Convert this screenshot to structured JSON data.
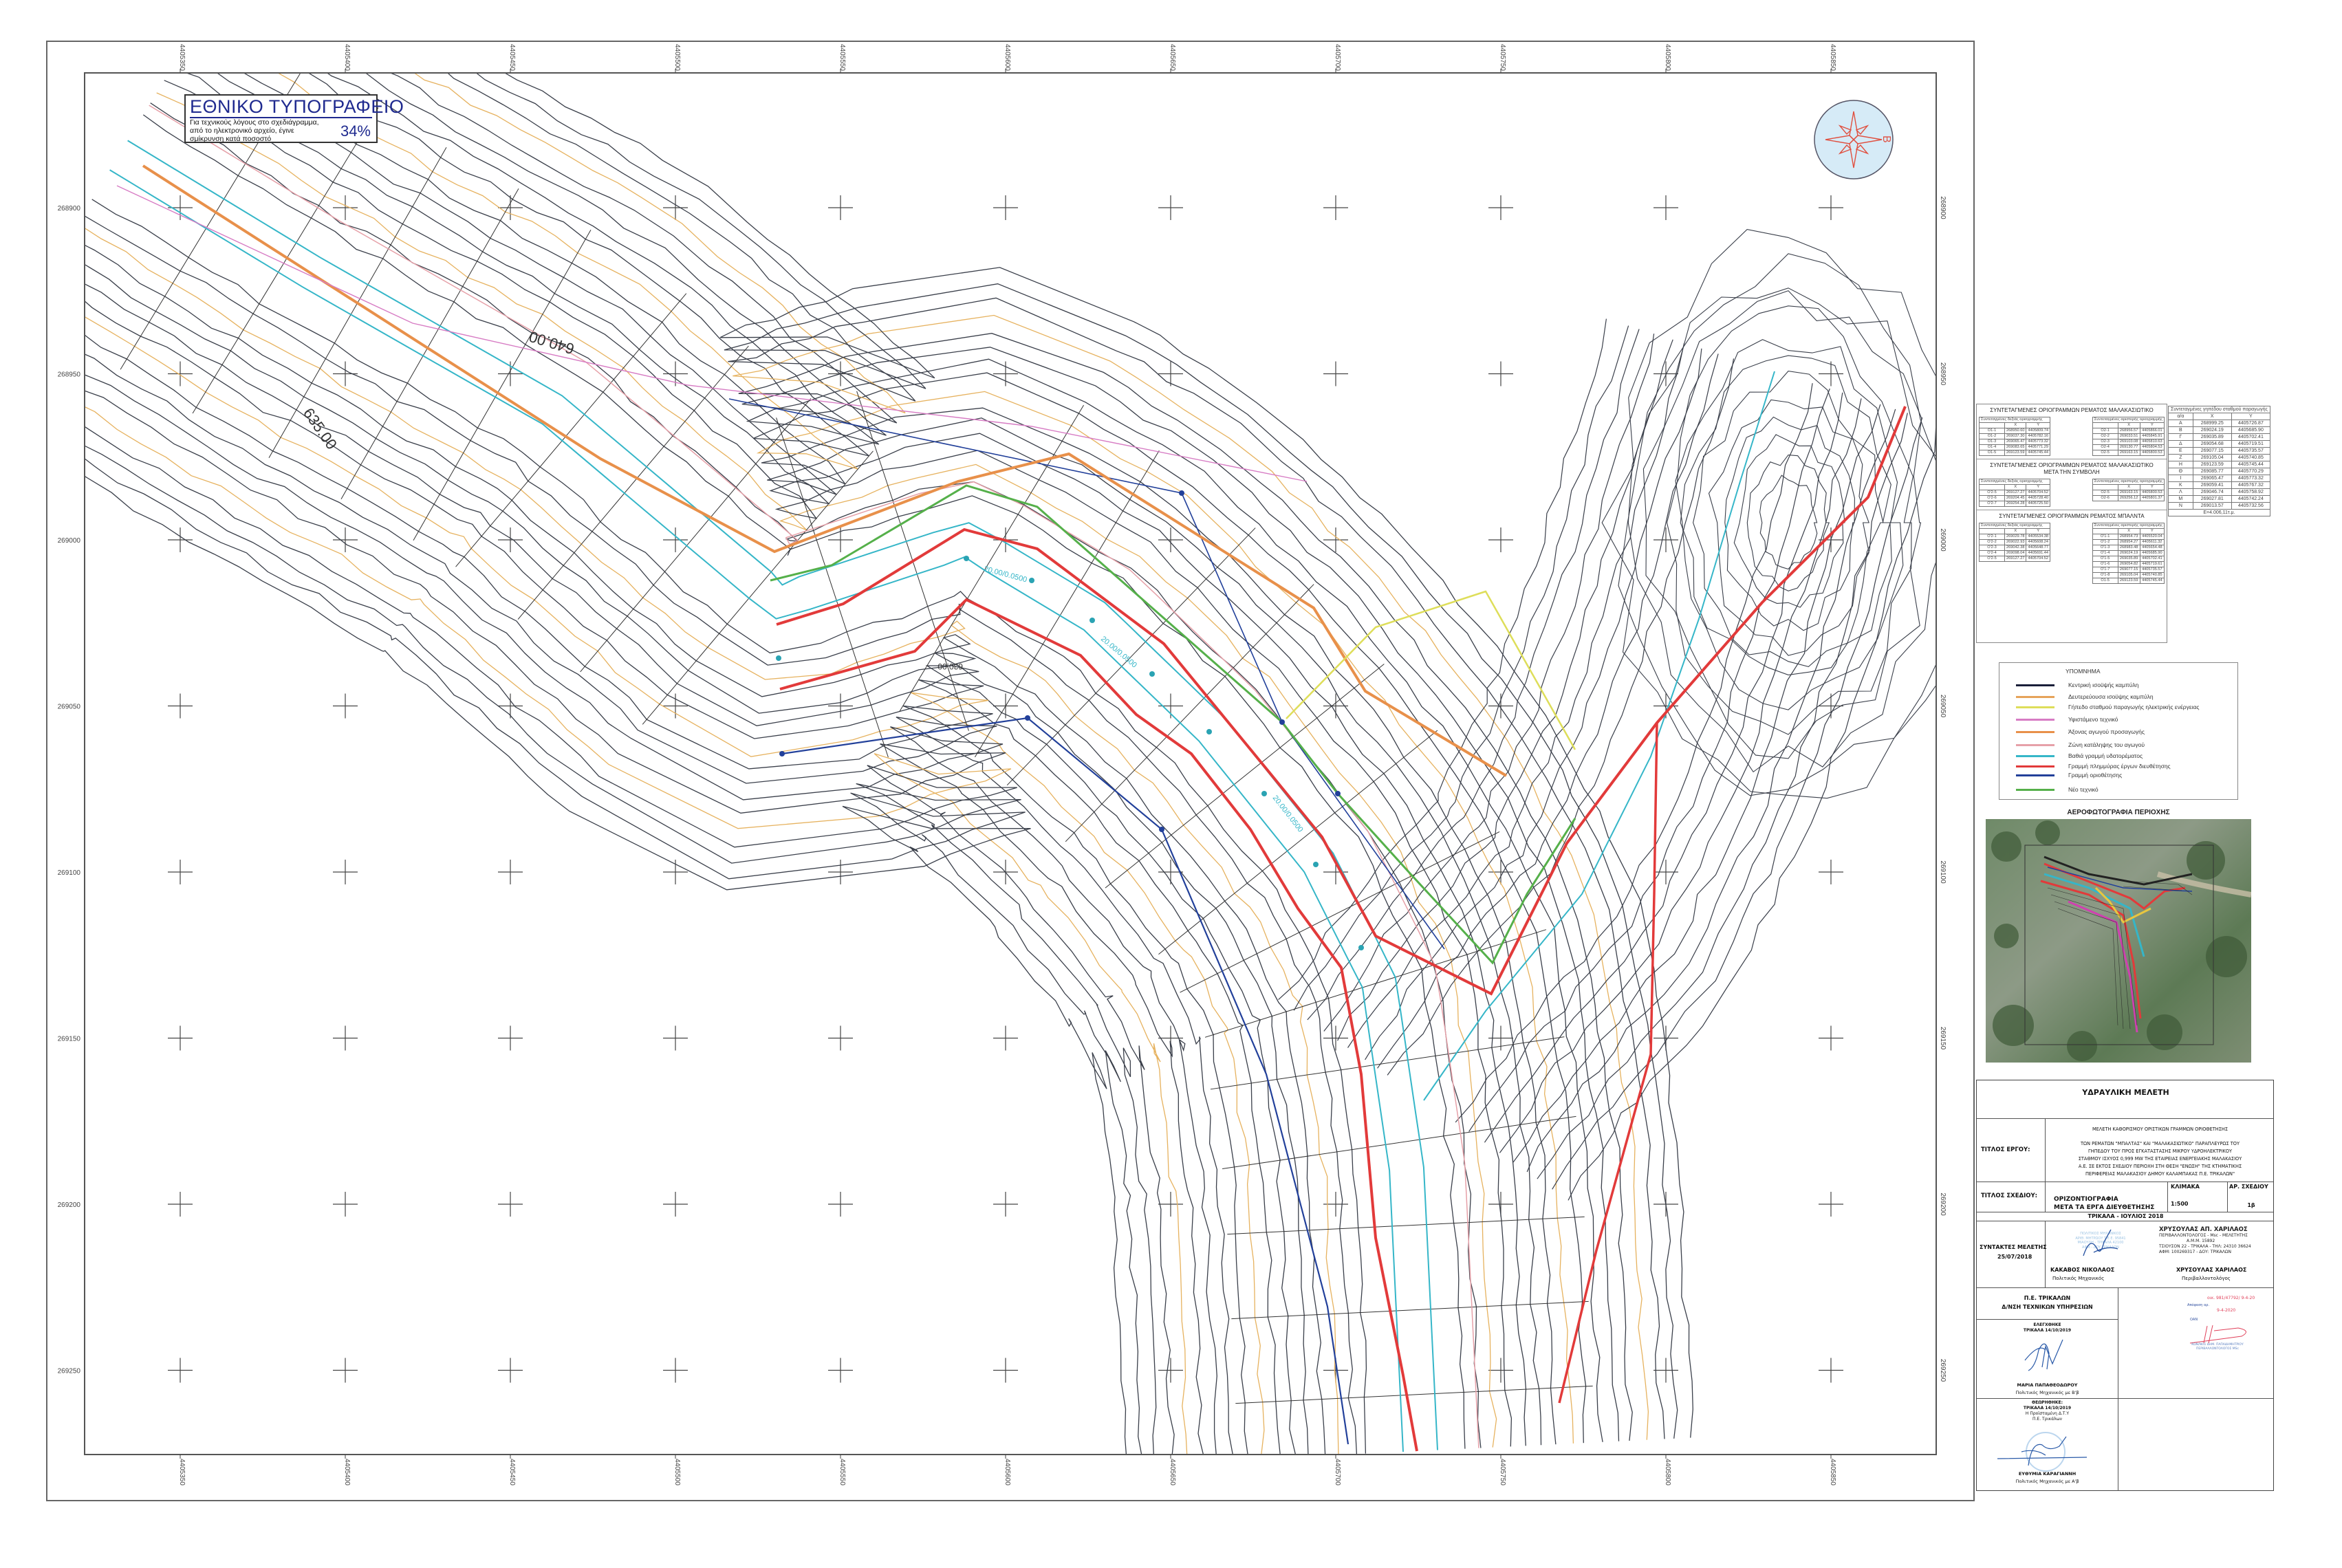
{
  "stamp": {
    "title": "ΕΘΝΙΚΟ ΤΥΠΟΓΡΑΦΕΙΟ",
    "lines": [
      "Για τεχνικούς λόγους στο σχεδιάγραμμα,",
      "από το ηλεκτρονικό αρχείο, έγινε",
      "σμίκρυνση κατά ποσοστό"
    ],
    "percent": "34%"
  },
  "map": {
    "compass_label": "Β",
    "grid_x_labels": [
      "4405350",
      "4405400",
      "4405450",
      "4405500",
      "4405550",
      "4405600",
      "4405650",
      "4405700",
      "4405750",
      "4405800",
      "4405850"
    ],
    "grid_y_labels": [
      "268900",
      "268950",
      "269000",
      "269050",
      "269100",
      "269150",
      "269200",
      "269250"
    ],
    "contour_labels": [
      "640.00",
      "635.00",
      "630.00"
    ],
    "slope_label": "20.00/0.0500"
  },
  "coords": {
    "malakasiotiko": {
      "title": "ΣΥΝΤΕΤΑΓΜΕΝΕΣ ΟΡΙΟΓΡΑΜΜΩΝ ΡΕΜΑΤΟΣ ΜΑΛΑΚΑΣΙΩΤΙΚΟ",
      "right": {
        "header": "Συντεταγμένες δεξιάς οριογραμμής",
        "cols": [
          "",
          "X",
          "Y"
        ],
        "rows": [
          [
            "O1-1",
            "268950.60",
            "4405809.74"
          ],
          [
            "O1-2",
            "269037.30",
            "4405782.16"
          ],
          [
            "O1-3",
            "269065.47",
            "4405773.32"
          ],
          [
            "O1-4",
            "269083.65",
            "4405771.29"
          ],
          [
            "O1-5",
            "269123.59",
            "4405745.44"
          ]
        ]
      },
      "left": {
        "header": "Συντεταγμένες αριστερής οριογραμμής",
        "cols": [
          "",
          "X",
          "Y"
        ],
        "rows": [
          [
            "O2-1",
            "268956.57",
            "4405866.01"
          ],
          [
            "O2-2",
            "269033.51",
            "4405845.91"
          ],
          [
            "O2-3",
            "269103.08",
            "4405810.63"
          ],
          [
            "O2-4",
            "269130.77",
            "4405804.53"
          ],
          [
            "O2-5",
            "269163.15",
            "4405800.53"
          ]
        ]
      }
    },
    "after_confluence": {
      "title": "ΣΥΝΤΕΤΑΓΜΕΝΕΣ ΟΡΙΟΓΡΑΜΜΩΝ ΡΕΜΑΤΟΣ ΜΑΛΑΚΑΣΙΩΤΙΚΟ",
      "subtitle": "ΜΕΤΑ ΤΗΝ ΣΥΜΒΟΛΗ",
      "right": {
        "header": "Συντεταγμένες δεξιάς οριογραμμής",
        "cols": [
          "",
          "X",
          "Y"
        ],
        "rows": [
          [
            "O'2-5",
            "269127.27",
            "4405704.52"
          ],
          [
            "O'2-6",
            "269204.45",
            "4405728.40"
          ],
          [
            "O'2-7",
            "269254.28",
            "4405725.50"
          ]
        ]
      },
      "left": {
        "header": "Συντεταγμένες αριστερής οριογραμμής",
        "cols": [
          "",
          "X",
          "Y"
        ],
        "rows": [
          [
            "O2-5",
            "269163.15",
            "4405800.53"
          ],
          [
            "O2-6",
            "269256.12",
            "4405801.37"
          ]
        ]
      }
    },
    "balnta": {
      "title": "ΣΥΝΤΕΤΑΓΜΕΝΕΣ ΟΡΙΟΓΡΑΜΜΩΝ ΡΕΜΑΤΟΣ ΜΠΑΛΝΤΑ",
      "right": {
        "header": "Συντεταγμένες δεξιάς οριογραμμής",
        "cols": [
          "",
          "X",
          "Y"
        ],
        "rows": [
          [
            "O'2-1",
            "269029.78",
            "4405534.38"
          ],
          [
            "O'2-2",
            "269022.93",
            "4405608.24"
          ],
          [
            "O'2-3",
            "269042.38",
            "4405648.77"
          ],
          [
            "O'2-4",
            "269098.04",
            "4405691.44"
          ],
          [
            "O'2-5",
            "269127.27",
            "4405704.52"
          ]
        ]
      },
      "left": {
        "header": "Συντεταγμένες αριστερής οριογραμμής",
        "cols": [
          "",
          "X",
          "Y"
        ],
        "rows": [
          [
            "O'1-1",
            "268954.73",
            "4405520.04"
          ],
          [
            "O'1-2",
            "268954.27",
            "4405611.32"
          ],
          [
            "O'1-3",
            "268983.48",
            "4405654.48"
          ],
          [
            "O'1-4",
            "269024.19",
            "4405685.90"
          ],
          [
            "O'1-5",
            "269035.89",
            "4405702.41"
          ],
          [
            "O'1-6",
            "269054.82",
            "4405719.61"
          ],
          [
            "O'1-7",
            "269077.15",
            "4405735.57"
          ],
          [
            "O'1-8",
            "269105.04",
            "4405740.85"
          ],
          [
            "O1-5",
            "269123.59",
            "4405745.44"
          ]
        ]
      }
    },
    "plot": {
      "header": "Συντεταγμένες γηπέδου σταθμού παραγωγής",
      "cols": [
        "α/α",
        "X",
        "Y"
      ],
      "rows": [
        [
          "Α",
          "268999.25",
          "4405726.87"
        ],
        [
          "Β",
          "269024.19",
          "4405685.90"
        ],
        [
          "Γ",
          "269035.89",
          "4405702.41"
        ],
        [
          "Δ",
          "269054.68",
          "4405719.51"
        ],
        [
          "Ε",
          "269077.15",
          "4405735.57"
        ],
        [
          "Ζ",
          "269105.04",
          "4405740.85"
        ],
        [
          "Η",
          "269123.59",
          "4405745.44"
        ],
        [
          "Θ",
          "269085.77",
          "4405770.29"
        ],
        [
          "Ι",
          "269065.47",
          "4405773.32"
        ],
        [
          "Κ",
          "269059.41",
          "4405767.32"
        ],
        [
          "Λ",
          "269046.74",
          "4405758.92"
        ],
        [
          "Μ",
          "269027.81",
          "4405742.24"
        ],
        [
          "Ν",
          "269013.57",
          "4405732.56"
        ]
      ],
      "area": "Ε=4.006,11τ.μ."
    }
  },
  "legend": {
    "title": "ΥΠΟΜΝΗΜΑ",
    "items": [
      {
        "label": "Κεντρική ισοϋψής καμπύλη",
        "color": "#1a1f3a"
      },
      {
        "label": "Δευτερεύουσα ισοϋψης καμπύλη",
        "color": "#e6a35a"
      },
      {
        "label": "Γήπεδο σταθμού παραγωγής ηλεκτρικής ενέργειας",
        "color": "#dede5a"
      },
      {
        "label": "Υφιστάμενο τεχνικό",
        "color": "#d77cc4"
      },
      {
        "label": "Άξονας αγωγού προσαγωγής",
        "color": "#e8904a"
      },
      {
        "label": "Ζώνη κατάληψης του αγωγού",
        "color": "#e6a0a8"
      },
      {
        "label": "Βαθιά γραμμή υδατορέματος",
        "color": "#35b6c8"
      },
      {
        "label": "Γραμμή πλημμύρας έργων διευθέτησης",
        "color": "#e23a3a"
      },
      {
        "label": "Γραμμή οριοθέτησης",
        "color": "#22409a"
      },
      {
        "label": "Νέο τεχνικό",
        "color": "#55b04a"
      }
    ]
  },
  "aerial": {
    "title": "ΑΕΡΟΦΩΤΟΓΡΑΦΙΑ ΠΕΡΙΟΧΗΣ"
  },
  "title_block": {
    "study": "ΥΔΡΑΥΛΙΚΗ ΜΕΛΕΤΗ",
    "project_label": "ΤΙΤΛΟΣ ΕΡΓΟΥ:",
    "project_lines": [
      "ΜΕΛΕΤΗ ΚΑΘΟΡΙΣΜΟΥ ΟΡΙΣΤΙΚΩΝ ΓΡΑΜΜΩΝ ΟΡΙΟΘΕΤΗΣΗΣ",
      "ΤΩΝ ΡΕΜΑΤΩΝ \"ΜΠΑΛΤΑΣ\" ΚΑΙ \"ΜΑΛΑΚΑΣΙΩΤΙΚΟ\" ΠΑΡΑΠΛΕΥΡΩΣ ΤΟΥ",
      "ΓΗΠΕΔΟΥ ΤΟΥ ΠΡΟΣ ΕΓΚΑΤΑΣΤΑΣΗΣ ΜΙΚΡΟΥ ΥΔΡΟΗΛΕΚΤΡΙΚΟΥ",
      "ΣΤΑΘΜΟΥ ΙΣΧΥΟΣ 0,999 MW ΤΗΣ ΕΤΑΙΡΕΙΑΣ ΕΝΕΡΓΕΙΑΚΗΣ ΜΑΛΑΚΑΣΙΟΥ",
      "Α.Ε. ΣΕ ΕΚΤΟΣ ΣΧΕΔΙΟΥ ΠΕΡΙΟΧΗ ΣΤΗ ΘΕΣΗ \"ΕΝΩΣΗ\" ΤΗΣ ΚΤΗΜΑΤΙΚΗΣ",
      "ΠΕΡΙΦΕΡΕΙΑΣ ΜΑΛΑΚΑΣΙΟΥ ΔΗΜΟΥ ΚΑΛΑΜΠΑΚΑΣ Π.Ε. ΤΡΙΚΑΛΩΝ\""
    ],
    "drawing_label": "ΤΙΤΛΟΣ ΣΧΕΔΙΟΥ:",
    "drawing_title": [
      "ΟΡΙΖΟΝΤΙΟΓΡΑΦΙΑ",
      "ΜΕΤΑ ΤΑ ΕΡΓΑ ΔΙΕΥΘΕΤΗΣΗΣ"
    ],
    "scale_label": "ΚΛΙΜΑΚΑ",
    "scale": "1:500",
    "drawing_no_label": "ΑΡ. ΣΧΕΔΙΟΥ",
    "drawing_no": "1β",
    "place_date": "ΤΡΙΚΑΛΑ - ΙΟΥΛΙΟΣ 2018",
    "authors_label": "ΣΥΝΤΑΚΤΕΣ ΜΕΛΕΤΗΣ",
    "authors_date": "25/07/2018",
    "author1": {
      "stamp": [
        "ΠΟΛΙΤΙΚΟΣ ΜΗΧΑΝΙΚΟΣ",
        "ΑΡΙΘ. ΜΗΤΡΩΟΥ Τ.Ε.Ε. 95841",
        "ΜΙΑΟΥΛΗ - ΤΡΙΚΑΛΑ 42100",
        "ΑΦΜ - ΔΟΥ ΤΡΙΚΑΛΩΝ"
      ],
      "name": "ΚΑΚΑΒΟΣ ΝΙΚΟΛΑΟΣ",
      "role": "Πολιτικός Μηχανικός"
    },
    "author2": {
      "stamp": [
        "ΧΡΥΣΟΥΛΑΣ ΑΠ. ΧΑΡΙΛΑΟΣ",
        "ΠΕΡΙΒΑΛΛΟΝΤΟΛΟΓΟΣ - Msc - ΜΕΛΕΤΗΤΗΣ",
        "Α.Μ.Μ. 15892",
        "ΤΣΙΟΥΣΟΝ 22 - ΤΡΙΚΑΛΑ - ΤΗΛ: 24310 36624",
        "ΑΦΜ: 100269317 - ΔΟΥ: ΤΡΙΚΑΛΩΝ"
      ],
      "name": "ΧΡΥΣΟΥΛΑΣ ΧΑΡΙΛΑΟΣ",
      "role": "Περιβαλλοντολόγος"
    },
    "authority": [
      "Π.Ε. ΤΡΙΚΑΛΩΝ",
      "Δ/ΝΣΗ ΤΕΧΝΙΚΩΝ ΥΠΗΡΕΣΙΩΝ"
    ],
    "checked": {
      "label": "ΕΛΕΓΧΘΗΚΕ",
      "date": "ΤΡΙΚΑΛΑ 14/10/2019",
      "name": "ΜΑΡΙΑ ΠΑΠΑΘΕΟΔΩΡΟΥ",
      "role": "Πολιτικός Μηχανικός με Β'β"
    },
    "reviewed": {
      "label": "ΘΕΩΡΗΘΗΚΕ:",
      "date": "ΤΡΙΚΑΛΑ 14/10/2019",
      "position": "Η Προϊσταμένη Δ.Τ.Υ",
      "unit": "Π.Ε. Τρικάλων",
      "name": "ΕΥΘΥΜΙΑ ΚΑΡΑΓΙΑΝΝΗ",
      "role": "Πολιτικός Μηχανικός με Α'β"
    },
    "approval": {
      "ref": "οικ. 981/47792/",
      "ref_date": "9-4-20",
      "decision": "Απόφαση αρ.",
      "date": "9-4-2020",
      "note": "ΟΑΝ",
      "stamp": [
        "ΚΩΝ/ΝΟΣ ΔΗΜ. ΠΑΠΑΔΗΜΗΤΡΙΟΥ",
        "ΠΕΡΙΒΑΛΛΟΝΤΟΛΟΓΟΣ MSc"
      ]
    }
  }
}
